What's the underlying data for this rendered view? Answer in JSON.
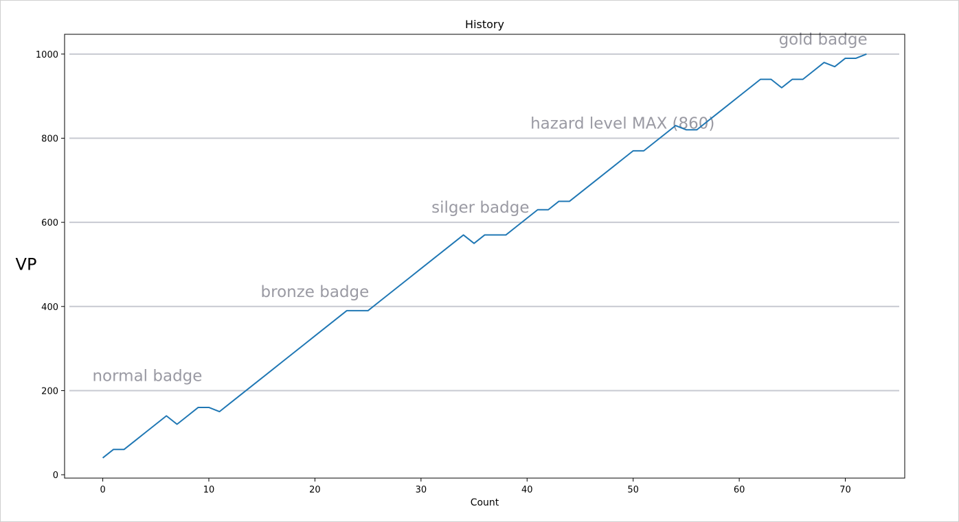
{
  "chart_data": {
    "type": "line",
    "title": "History",
    "xlabel": "Count",
    "ylabel": "VP",
    "xlim": [
      -3.6,
      75.6
    ],
    "ylim": [
      -8,
      1047
    ],
    "xticks": [
      0,
      10,
      20,
      30,
      40,
      50,
      60,
      70
    ],
    "yticks": [
      0,
      200,
      400,
      600,
      800,
      1000
    ],
    "grid": "horizontal lines at VP thresholds",
    "line_color": "#1f77b4",
    "threshold_color": "#c7c9d1",
    "annotation_color": "#9a9aa3",
    "thresholds": [
      {
        "y": 200,
        "label": "normal badge",
        "label_x": 4.2
      },
      {
        "y": 400,
        "label": "bronze badge",
        "label_x": 20.0
      },
      {
        "y": 600,
        "label": "silger badge",
        "label_x": 35.6
      },
      {
        "y": 800,
        "label": "hazard level MAX (860)",
        "label_x": 49.0
      },
      {
        "y": 1000,
        "label": "gold badge",
        "label_x": 67.9
      }
    ],
    "series": [
      {
        "x": [
          0,
          1,
          2,
          3,
          4,
          5,
          6,
          7,
          8,
          9,
          10,
          11,
          12,
          13,
          14,
          15,
          16,
          17,
          18,
          19,
          20,
          21,
          22,
          23,
          24,
          25,
          26,
          27,
          28,
          29,
          30,
          31,
          32,
          33,
          34,
          35,
          36,
          37,
          38,
          39,
          40,
          41,
          42,
          43,
          44,
          45,
          46,
          47,
          48,
          49,
          50,
          51,
          52,
          53,
          54,
          55,
          56,
          57,
          58,
          59,
          60,
          61,
          62,
          63,
          64,
          65,
          66,
          67,
          68,
          69,
          70,
          71,
          72
        ],
        "y": [
          40,
          60,
          60,
          80,
          100,
          120,
          140,
          120,
          140,
          160,
          160,
          150,
          170,
          190,
          210,
          230,
          250,
          270,
          290,
          310,
          330,
          350,
          370,
          390,
          390,
          390,
          410,
          430,
          450,
          470,
          490,
          510,
          530,
          550,
          570,
          550,
          570,
          570,
          570,
          590,
          610,
          630,
          630,
          650,
          650,
          670,
          690,
          710,
          730,
          750,
          770,
          770,
          790,
          810,
          830,
          820,
          820,
          840,
          860,
          880,
          900,
          920,
          940,
          940,
          920,
          940,
          940,
          960,
          980,
          970,
          990,
          990,
          1000
        ]
      }
    ]
  }
}
